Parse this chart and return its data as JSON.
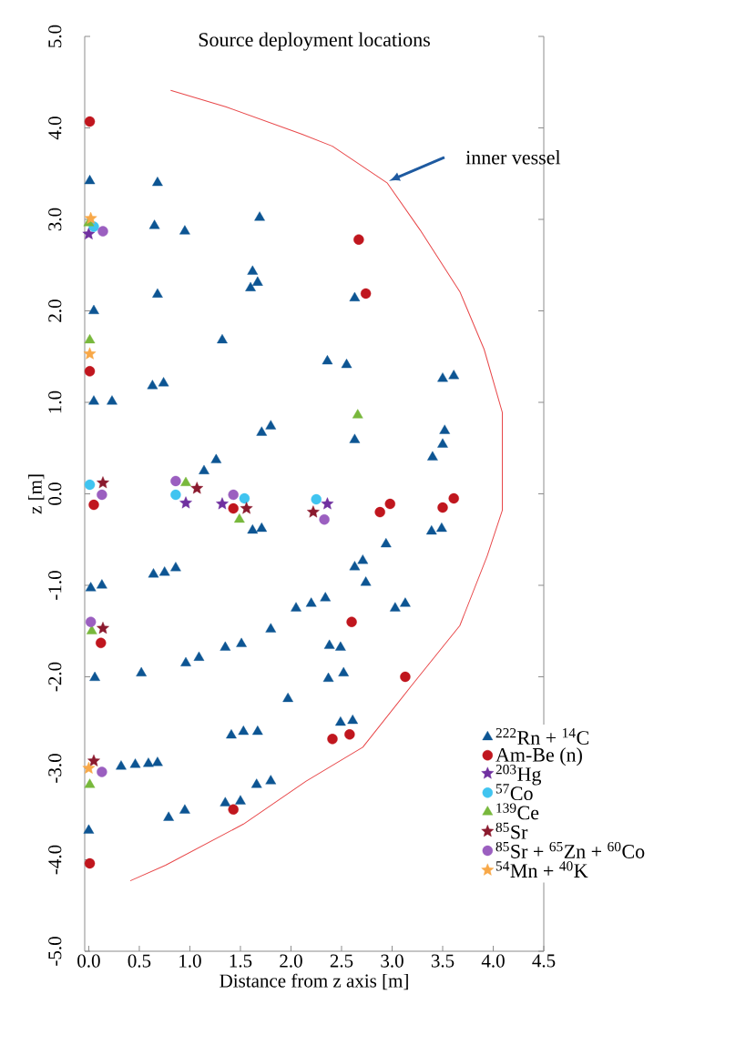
{
  "chart_data": {
    "type": "scatter",
    "title": "Source deployment locations",
    "xlabel": "Distance from z axis [m]",
    "ylabel": "z [m]",
    "xlim": [
      -0.04,
      4.5
    ],
    "ylim": [
      -5,
      5
    ],
    "xticks": [
      {
        "value": 0,
        "label": "0.0"
      },
      0.5,
      {
        "value": 1,
        "label": "1.0"
      },
      1.5,
      {
        "value": 2,
        "label": "2.0"
      },
      2.5,
      {
        "value": 3,
        "label": "3.0"
      },
      3.5,
      {
        "value": 4,
        "label": "4.0"
      },
      4.5
    ],
    "yticks": [
      {
        "value": -5,
        "label": "-5.0"
      },
      {
        "value": -4,
        "label": "-4.0"
      },
      {
        "value": -3,
        "label": "-3.0"
      },
      {
        "value": -2,
        "label": "-2.0"
      },
      {
        "value": -1,
        "label": "-1.0"
      },
      {
        "value": 0,
        "label": "0.0"
      },
      {
        "value": 1,
        "label": "1.0"
      },
      {
        "value": 2,
        "label": "2.0"
      },
      {
        "value": 3,
        "label": "3.0"
      },
      {
        "value": 4,
        "label": "4.0"
      },
      {
        "value": 5,
        "label": "5.0"
      }
    ],
    "legend": "bottom right",
    "grid": false,
    "annotations": [
      "inner vessel"
    ],
    "series": [
      {
        "type": "line",
        "color": "#e8484a",
        "marker": "none",
        "line_style": "solid",
        "x": [
          0.81,
          1.36,
          2.11,
          2.41,
          2.95,
          3.28,
          3.67,
          3.91,
          4.09,
          4.09,
          3.94,
          3.67,
          3.19,
          2.71,
          2.15,
          1.53,
          0.76,
          0.41
        ],
        "values": [
          4.41,
          4.23,
          3.93,
          3.8,
          3.4,
          2.88,
          2.21,
          1.58,
          0.89,
          -0.18,
          -0.68,
          -1.44,
          -2.1,
          -2.77,
          -3.14,
          -3.61,
          -4.06,
          -4.23
        ]
      },
      {
        "name": "$^{222}$Rn + $^{14}$C",
        "color": "#0d5593",
        "marker": "triangle",
        "x": [
          0.01,
          0.68,
          0.65,
          0.95,
          1.69,
          1.62,
          1.67,
          1.6,
          0.68,
          0.05,
          1.32,
          0.63,
          0.74,
          0.05,
          0.23,
          1.71,
          1.8,
          1.26,
          1.14,
          2.36,
          2.55,
          2.63,
          2.63,
          3.5,
          3.61,
          3.52,
          3.5,
          3.4,
          1.62,
          1.71,
          0.64,
          0.75,
          0.86,
          0.02,
          0.13,
          0.52,
          0.06,
          0.96,
          1.09,
          1.35,
          1.51,
          1.8,
          2.05,
          2.2,
          2.34,
          1.97,
          1.41,
          1.53,
          1.67,
          0.32,
          0.46,
          0.59,
          0.68,
          0.79,
          0.95,
          1.35,
          1.5,
          1.66,
          1.8,
          0.0,
          2.94,
          3.39,
          3.49,
          2.63,
          2.71,
          2.74,
          3.03,
          3.13,
          2.38,
          2.49,
          2.37,
          2.52,
          2.49,
          2.61
        ],
        "values": [
          3.42,
          3.4,
          2.93,
          2.87,
          3.02,
          2.43,
          2.31,
          2.25,
          2.18,
          2.0,
          1.68,
          1.18,
          1.21,
          1.01,
          1.01,
          0.67,
          0.74,
          0.37,
          0.25,
          1.45,
          1.41,
          2.14,
          0.59,
          1.26,
          1.29,
          0.69,
          0.54,
          0.4,
          -0.4,
          -0.38,
          -0.88,
          -0.86,
          -0.81,
          -1.03,
          -1.0,
          -1.96,
          -2.01,
          -1.85,
          -1.79,
          -1.68,
          -1.64,
          -1.48,
          -1.25,
          -1.2,
          -1.14,
          -2.24,
          -2.64,
          -2.6,
          -2.6,
          -2.98,
          -2.96,
          -2.95,
          -2.94,
          -3.54,
          -3.46,
          -3.38,
          -3.36,
          -3.18,
          -3.14,
          -3.68,
          -0.55,
          -0.41,
          -0.38,
          -0.8,
          -0.73,
          -0.97,
          -1.25,
          -1.2,
          -1.66,
          -1.68,
          -2.02,
          -1.96,
          -2.5,
          -2.48
        ]
      },
      {
        "name": "Am-Be (n)",
        "color": "#c0161e",
        "marker": "circle",
        "x": [
          0.01,
          0.01,
          2.67,
          2.74,
          0.05,
          1.43,
          2.88,
          2.98,
          3.5,
          3.61,
          2.6,
          3.13,
          2.41,
          2.58,
          0.12,
          1.43,
          0.01
        ],
        "values": [
          4.07,
          1.34,
          2.78,
          2.19,
          -0.12,
          -0.16,
          -0.2,
          -0.11,
          -0.15,
          -0.05,
          -1.4,
          -2.0,
          -2.68,
          -2.63,
          -1.63,
          -3.45,
          -4.04
        ]
      },
      {
        "name": "$^{203}$Hg",
        "color": "#7030a0",
        "marker": "star",
        "x": [
          0.0,
          0.96,
          1.32,
          2.36
        ],
        "values": [
          2.84,
          -0.1,
          -0.11,
          -0.11
        ]
      },
      {
        "name": "$^{57}$Co",
        "color": "#40c4f0",
        "marker": "circle",
        "x": [
          0.05,
          0.01,
          0.86,
          1.54,
          2.25
        ],
        "values": [
          2.92,
          0.1,
          -0.01,
          -0.05,
          -0.06
        ]
      },
      {
        "name": "$^{139}$Ce",
        "color": "#78b83c",
        "marker": "triangle",
        "x": [
          0.0,
          0.01,
          0.96,
          1.49,
          2.66,
          0.03,
          0.01
        ],
        "values": [
          2.96,
          1.68,
          0.12,
          -0.28,
          0.86,
          -1.5,
          -3.18
        ]
      },
      {
        "name": "$^{85}$Sr",
        "color": "#8b1a2e",
        "marker": "star",
        "x": [
          0.14,
          1.07,
          1.56,
          2.22,
          0.14,
          0.05
        ],
        "values": [
          0.12,
          0.06,
          -0.16,
          -0.2,
          -1.47,
          -2.92
        ]
      },
      {
        "name": "$^{85}$Sr + $^{65}$Zn + $^{60}$Co",
        "color": "#9b5fc0",
        "marker": "circle",
        "x": [
          0.14,
          0.13,
          0.86,
          1.43,
          2.33,
          0.02,
          0.13
        ],
        "values": [
          2.87,
          -0.01,
          0.14,
          -0.01,
          -0.28,
          -1.4,
          -3.04
        ]
      },
      {
        "name": "$^{54}$Mn + $^{40}$K",
        "color": "#f8a848",
        "marker": "star",
        "x": [
          0.02,
          0.01,
          0.0
        ],
        "values": [
          3.01,
          1.53,
          -3.0
        ]
      }
    ]
  }
}
